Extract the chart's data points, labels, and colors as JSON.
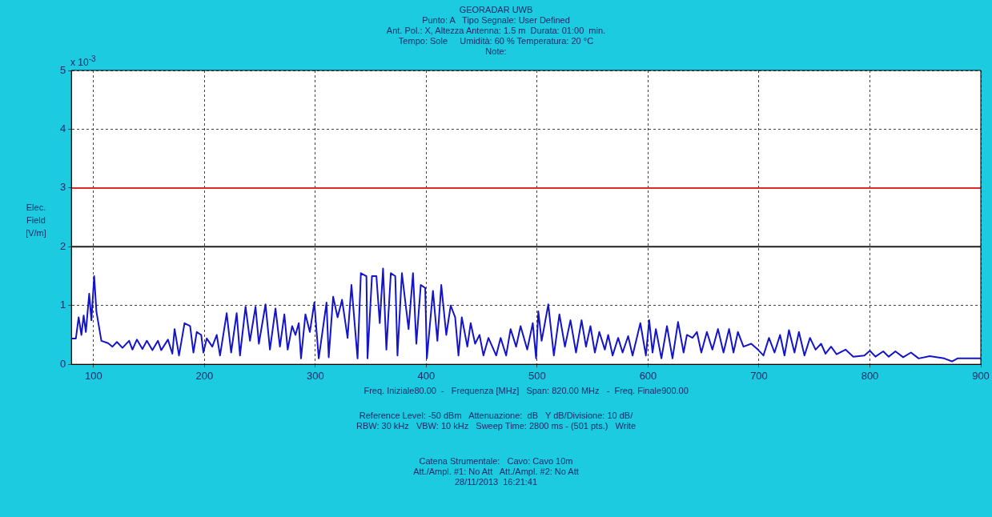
{
  "chart_data": {
    "type": "line",
    "title": "GEORADAR UWB",
    "subtitle": "Punto: A   Tipo Segnale: User Defined\nAnt. Pol.: X, Altezza Antenna: 1.5 m  Durata: 01:00  min.\nTempo: Sole     Umidità: 60 % Temperatura: 20 °C\nNote:",
    "xlabel": "Freq. Iniziale80.00  -   Frequenza [MHz]   Span: 820.00 MHz   -  Freq. Finale900.00",
    "ylabel": "Elec.\nField\n[V/m]",
    "annotations": [
      "x 10$^{-3}$",
      "Reference Level: -50 dBm   Attenuazione:  dB   Y dB/Divisione: 10 dB/\nRBW: 30 kHz   VBW: 10 kHz   Sweep Time: 2800 ms - (501 pts.)   Write",
      "Catena Strumentale:   Cavo: Cavo 10m\nAtt./Ampl. #1: No Att   Att./Ampl. #2: No Att\n28/11/2013  16:21:41"
    ],
    "x": [
      80,
      84,
      86.5,
      89,
      91,
      93,
      96,
      98,
      100.5,
      102.5,
      107,
      113,
      117,
      121,
      126,
      132,
      135,
      139,
      144,
      148,
      153,
      158,
      161,
      167,
      171,
      173,
      177,
      182,
      187,
      190,
      193,
      197,
      199,
      202,
      207,
      211,
      214,
      220,
      224,
      229,
      232,
      237,
      241,
      246,
      249,
      255,
      259,
      264,
      268,
      272,
      275,
      279,
      282,
      285,
      287,
      291,
      295,
      299,
      303,
      310,
      312,
      316,
      320,
      324,
      329,
      332.5,
      338,
      341,
      346,
      347,
      351,
      355,
      358,
      361,
      364,
      368,
      372,
      374,
      378,
      384,
      388,
      391,
      395,
      399,
      400.5,
      406,
      410,
      413.5,
      418,
      422,
      426,
      429,
      432,
      437,
      440,
      444,
      448,
      451.5,
      456,
      463,
      467,
      472,
      476,
      481,
      485,
      491,
      496,
      499,
      501,
      504,
      510,
      515,
      520,
      525,
      530,
      535,
      540,
      544,
      548,
      552,
      556,
      561,
      564,
      568,
      573,
      577,
      582,
      586,
      593,
      598,
      601,
      604,
      607,
      612,
      617,
      622,
      627,
      632,
      635,
      640,
      644,
      648,
      653,
      658,
      663,
      668,
      673,
      677,
      681,
      686,
      693,
      699,
      704,
      709,
      714,
      719,
      723,
      727,
      732,
      736,
      741,
      746,
      751,
      756,
      760,
      765,
      770,
      778,
      785,
      795,
      800,
      805,
      812,
      817,
      823,
      830,
      837,
      844,
      854,
      867,
      874,
      879,
      900
    ],
    "series": [
      {
        "color": "#1414c8",
        "values": [
          0.44,
          0.44,
          0.8,
          0.5,
          0.83,
          0.55,
          1.2,
          0.75,
          1.5,
          0.9,
          0.4,
          0.36,
          0.3,
          0.38,
          0.28,
          0.4,
          0.25,
          0.42,
          0.26,
          0.4,
          0.24,
          0.4,
          0.24,
          0.42,
          0.18,
          0.6,
          0.15,
          0.7,
          0.65,
          0.2,
          0.55,
          0.5,
          0.2,
          0.44,
          0.3,
          0.5,
          0.15,
          0.87,
          0.2,
          0.87,
          0.15,
          0.98,
          0.4,
          0.98,
          0.35,
          1.02,
          0.25,
          0.95,
          0.3,
          0.85,
          0.25,
          0.65,
          0.5,
          0.7,
          0.1,
          0.85,
          0.55,
          1.05,
          0.1,
          1.05,
          0.12,
          1.15,
          0.8,
          1.1,
          0.45,
          1.35,
          0.1,
          1.55,
          1.5,
          0.1,
          1.5,
          1.5,
          0.7,
          1.63,
          0.25,
          1.55,
          1.5,
          0.15,
          1.55,
          0.6,
          1.55,
          0.35,
          1.35,
          1.3,
          0.1,
          1.25,
          0.4,
          1.35,
          0.5,
          1,
          0.8,
          0.15,
          0.8,
          0.3,
          0.7,
          0.35,
          0.5,
          0.15,
          0.45,
          0.15,
          0.45,
          0.15,
          0.6,
          0.3,
          0.65,
          0.25,
          0.7,
          0.1,
          0.9,
          0.4,
          1.02,
          0.15,
          0.85,
          0.3,
          0.75,
          0.2,
          0.75,
          0.3,
          0.65,
          0.2,
          0.55,
          0.25,
          0.5,
          0.15,
          0.45,
          0.2,
          0.48,
          0.15,
          0.7,
          0.15,
          0.75,
          0.2,
          0.6,
          0.1,
          0.65,
          0.1,
          0.72,
          0.2,
          0.5,
          0.45,
          0.55,
          0.2,
          0.55,
          0.25,
          0.6,
          0.2,
          0.6,
          0.2,
          0.55,
          0.3,
          0.35,
          0.25,
          0.15,
          0.45,
          0.2,
          0.5,
          0.15,
          0.58,
          0.2,
          0.55,
          0.15,
          0.45,
          0.25,
          0.35,
          0.18,
          0.3,
          0.17,
          0.25,
          0.13,
          0.15,
          0.23,
          0.13,
          0.22,
          0.13,
          0.22,
          0.12,
          0.2,
          0.1,
          0.14,
          0.1,
          0.05,
          0.1,
          0.1
        ]
      }
    ],
    "xlim": [
      80,
      900
    ],
    "xticks": [
      100,
      200,
      300,
      400,
      500,
      600,
      700,
      800,
      900
    ],
    "ylim": [
      0,
      5
    ],
    "yticks": [
      0,
      1,
      2,
      3,
      4,
      5
    ],
    "ref_lines": [
      {
        "axis": "y",
        "value": 3,
        "color": "#e02828"
      },
      {
        "axis": "y",
        "value": 2,
        "color": "#202020"
      }
    ],
    "grid": true,
    "legend": false,
    "marker": "none",
    "line_style": "solid"
  }
}
